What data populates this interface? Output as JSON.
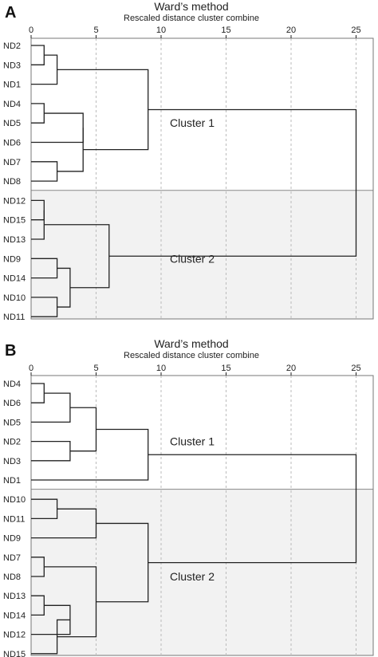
{
  "panels": [
    {
      "letter": "A",
      "title": "Ward’s method",
      "subtitle": "Rescaled distance cluster combine",
      "ticks": [
        "0",
        "5",
        "10",
        "15",
        "20",
        "25"
      ],
      "tick_values": [
        0,
        5,
        10,
        15,
        20,
        25
      ],
      "leaves": [
        "ND2",
        "ND3",
        "ND1",
        "ND4",
        "ND5",
        "ND6",
        "ND7",
        "ND8",
        "ND12",
        "ND15",
        "ND13",
        "ND9",
        "ND14",
        "ND10",
        "ND11"
      ],
      "merges": [
        [
          0,
          1,
          1
        ],
        [
          15,
          2,
          2
        ],
        [
          3,
          4,
          1
        ],
        [
          17,
          5,
          4
        ],
        [
          6,
          7,
          2
        ],
        [
          18,
          19,
          4
        ],
        [
          16,
          20,
          9
        ],
        [
          8,
          9,
          1
        ],
        [
          22,
          10,
          1
        ],
        [
          11,
          12,
          2
        ],
        [
          13,
          14,
          2
        ],
        [
          24,
          25,
          3
        ],
        [
          23,
          26,
          6
        ],
        [
          21,
          27,
          25
        ]
      ],
      "clusters": [
        {
          "label": "Cluster 1",
          "first_leaf": 0,
          "last_leaf": 7,
          "shaded": false
        },
        {
          "label": "Cluster 2",
          "first_leaf": 8,
          "last_leaf": 14,
          "shaded": true
        }
      ]
    },
    {
      "letter": "B",
      "title": "Ward’s method",
      "subtitle": "Rescaled distance cluster combine",
      "ticks": [
        "0",
        "5",
        "10",
        "15",
        "20",
        "25"
      ],
      "tick_values": [
        0,
        5,
        10,
        15,
        20,
        25
      ],
      "leaves": [
        "ND4",
        "ND6",
        "ND5",
        "ND2",
        "ND3",
        "ND1",
        "ND10",
        "ND11",
        "ND9",
        "ND7",
        "ND8",
        "ND13",
        "ND14",
        "ND12",
        "ND15"
      ],
      "merges": [
        [
          0,
          1,
          1
        ],
        [
          15,
          2,
          3
        ],
        [
          3,
          4,
          3
        ],
        [
          16,
          17,
          5
        ],
        [
          18,
          5,
          9
        ],
        [
          6,
          7,
          2
        ],
        [
          20,
          8,
          5
        ],
        [
          9,
          10,
          1
        ],
        [
          11,
          12,
          1
        ],
        [
          23,
          13,
          3
        ],
        [
          24,
          14,
          2
        ],
        [
          22,
          25,
          5
        ],
        [
          21,
          26,
          9
        ],
        [
          19,
          27,
          25
        ]
      ],
      "clusters": [
        {
          "label": "Cluster 1",
          "first_leaf": 0,
          "last_leaf": 5,
          "shaded": false
        },
        {
          "label": "Cluster 2",
          "first_leaf": 6,
          "last_leaf": 14,
          "shaded": true
        }
      ]
    }
  ]
}
